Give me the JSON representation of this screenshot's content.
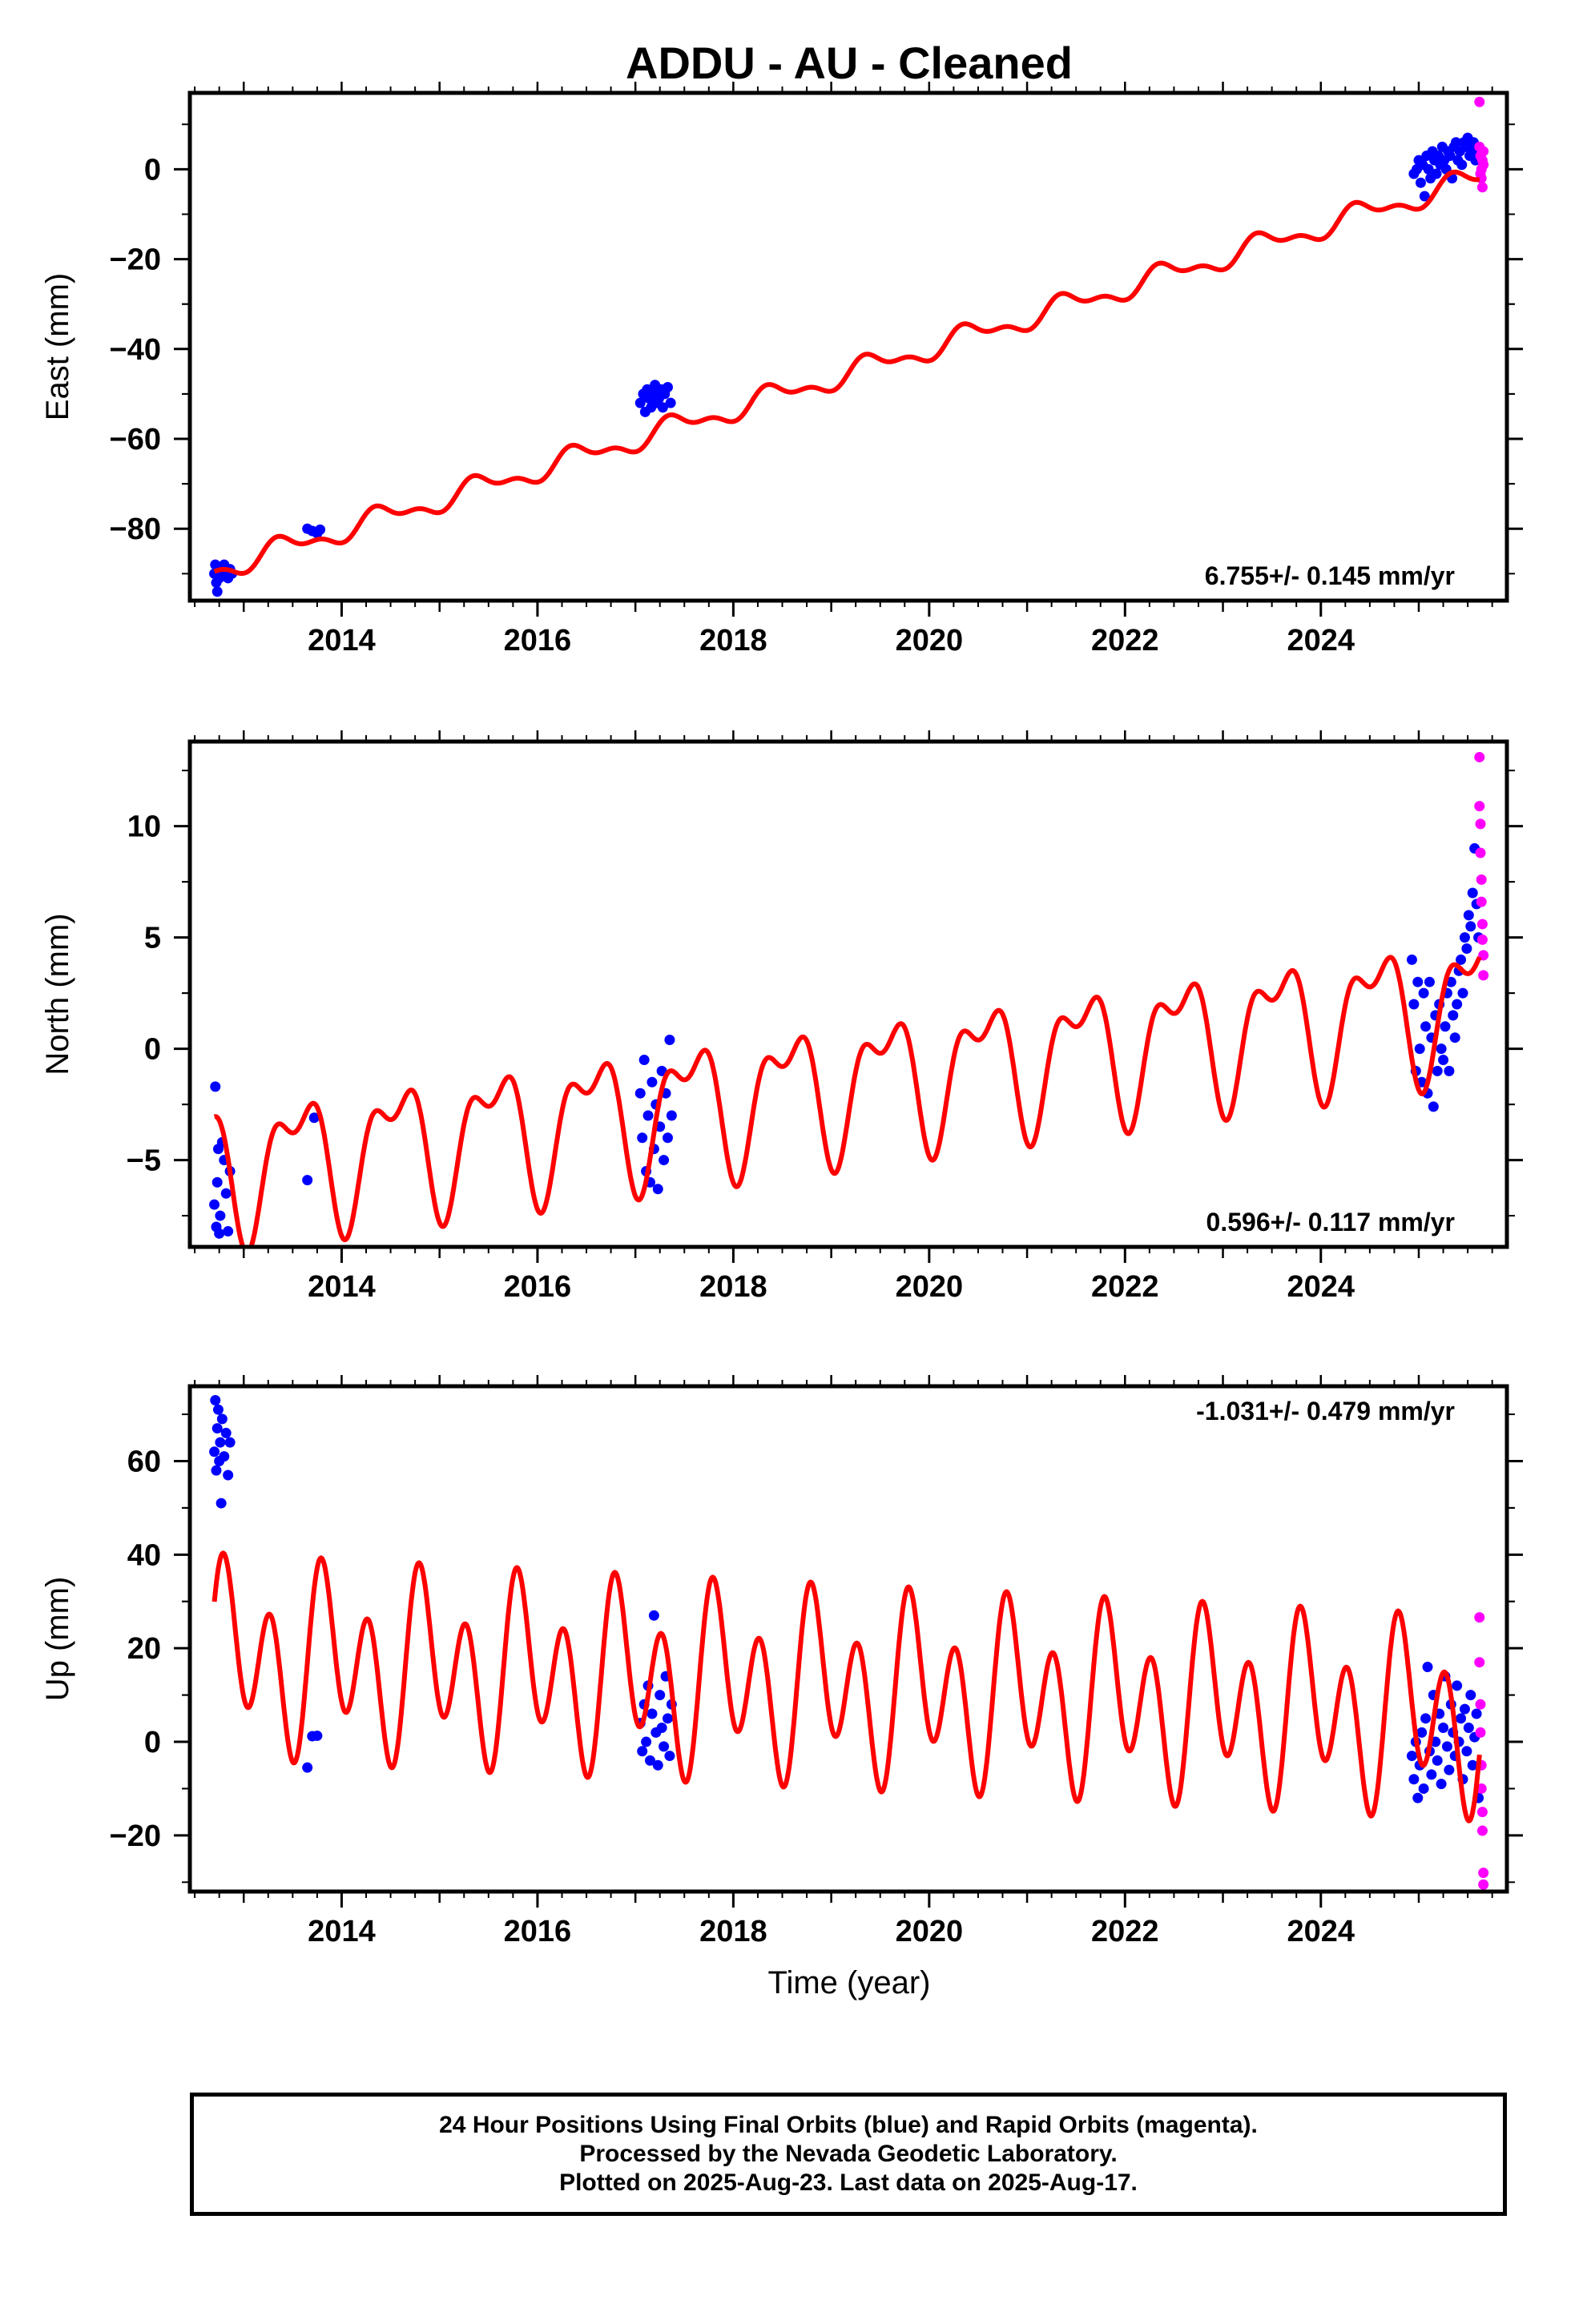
{
  "figure": {
    "title": "ADDU  - AU - Cleaned",
    "xlabel": "Time (year)",
    "caption": [
      "24 Hour Positions Using Final Orbits (blue) and Rapid Orbits (magenta).",
      "Processed by the Nevada Geodetic Laboratory.",
      "Plotted on 2025-Aug-23. Last data on 2025-Aug-17."
    ]
  },
  "colors": {
    "final": "#0000ff",
    "rapid": "#ff00ff",
    "model": "#ff0000",
    "axis": "#000000"
  },
  "chart_data": [
    {
      "type": "scatter",
      "ylabel": "East (mm)",
      "rate_text": "6.755+/- 0.145 mm/yr",
      "xlim": [
        2012.45,
        2025.9
      ],
      "ylim": [
        -96,
        17
      ],
      "xticks": [
        2014,
        2016,
        2018,
        2020,
        2022,
        2024
      ],
      "yticks": [
        -80,
        -60,
        -40,
        -20,
        0
      ],
      "model": {
        "t0": 2012.7,
        "v0": -89.2,
        "rate": 6.755,
        "a1": 2.2,
        "p1": 3.4,
        "a2": 1.2,
        "p2": 0.2
      },
      "series": [
        {
          "kind": "final",
          "points": [
            [
              2012.7,
              -90
            ],
            [
              2012.71,
              -88
            ],
            [
              2012.72,
              -92
            ],
            [
              2012.73,
              -94
            ],
            [
              2012.74,
              -89
            ],
            [
              2012.75,
              -91
            ],
            [
              2012.76,
              -90.5
            ],
            [
              2012.78,
              -89.5
            ],
            [
              2012.8,
              -88
            ],
            [
              2012.82,
              -90
            ],
            [
              2012.84,
              -91
            ],
            [
              2012.86,
              -89
            ],
            [
              2012.88,
              -90
            ],
            [
              2013.65,
              -80
            ],
            [
              2013.7,
              -80.5
            ],
            [
              2013.75,
              -81
            ],
            [
              2013.78,
              -80.2
            ],
            [
              2017.05,
              -52
            ],
            [
              2017.08,
              -50
            ],
            [
              2017.1,
              -54
            ],
            [
              2017.12,
              -49
            ],
            [
              2017.14,
              -51
            ],
            [
              2017.16,
              -53
            ],
            [
              2017.18,
              -50
            ],
            [
              2017.2,
              -48
            ],
            [
              2017.22,
              -52
            ],
            [
              2017.24,
              -51
            ],
            [
              2017.26,
              -49
            ],
            [
              2017.28,
              -53
            ],
            [
              2017.3,
              -50
            ],
            [
              2017.33,
              -48.5
            ],
            [
              2017.36,
              -52
            ],
            [
              2024.95,
              -1
            ],
            [
              2024.98,
              0
            ],
            [
              2025.0,
              2
            ],
            [
              2025.02,
              -3
            ],
            [
              2025.04,
              1
            ],
            [
              2025.06,
              -6
            ],
            [
              2025.08,
              3
            ],
            [
              2025.1,
              0
            ],
            [
              2025.12,
              -2
            ],
            [
              2025.14,
              4
            ],
            [
              2025.16,
              2
            ],
            [
              2025.18,
              -1
            ],
            [
              2025.2,
              3
            ],
            [
              2025.22,
              1
            ],
            [
              2025.24,
              5
            ],
            [
              2025.26,
              2
            ],
            [
              2025.28,
              0
            ],
            [
              2025.3,
              4
            ],
            [
              2025.32,
              3
            ],
            [
              2025.34,
              -2
            ],
            [
              2025.36,
              5
            ],
            [
              2025.38,
              6
            ],
            [
              2025.4,
              2
            ],
            [
              2025.42,
              4
            ],
            [
              2025.44,
              1
            ],
            [
              2025.46,
              6
            ],
            [
              2025.48,
              5
            ],
            [
              2025.5,
              7
            ],
            [
              2025.52,
              3
            ],
            [
              2025.54,
              5
            ],
            [
              2025.56,
              6
            ],
            [
              2025.58,
              2
            ],
            [
              2025.6,
              4
            ]
          ]
        },
        {
          "kind": "rapid",
          "points": [
            [
              2025.62,
              15
            ],
            [
              2025.62,
              5
            ],
            [
              2025.63,
              3
            ],
            [
              2025.63,
              -1
            ],
            [
              2025.64,
              0
            ],
            [
              2025.64,
              -2
            ],
            [
              2025.65,
              -4
            ],
            [
              2025.65,
              2
            ],
            [
              2025.66,
              4
            ],
            [
              2025.66,
              1
            ]
          ]
        }
      ]
    },
    {
      "type": "scatter",
      "ylabel": "North (mm)",
      "rate_text": "0.596+/- 0.117 mm/yr",
      "xlim": [
        2012.45,
        2025.9
      ],
      "ylim": [
        -8.9,
        13.8
      ],
      "xticks": [
        2014,
        2016,
        2018,
        2020,
        2022,
        2024
      ],
      "yticks": [
        -5,
        0,
        5,
        10
      ],
      "model": {
        "t0": 2012.7,
        "v0": -5.4,
        "rate": 0.596,
        "a1": 2.6,
        "p1": 2.5,
        "a2": 1.4,
        "p2": 0.6
      },
      "series": [
        {
          "kind": "final",
          "points": [
            [
              2012.7,
              -7
            ],
            [
              2012.71,
              -1.7
            ],
            [
              2012.72,
              -8
            ],
            [
              2012.73,
              -6
            ],
            [
              2012.74,
              -4.5
            ],
            [
              2012.75,
              -8.3
            ],
            [
              2012.76,
              -7.5
            ],
            [
              2012.78,
              -4.2
            ],
            [
              2012.8,
              -5
            ],
            [
              2012.82,
              -6.5
            ],
            [
              2012.84,
              -8.2
            ],
            [
              2012.86,
              -5.5
            ],
            [
              2013.65,
              -5.9
            ],
            [
              2013.72,
              -3.1
            ],
            [
              2017.05,
              -2
            ],
            [
              2017.07,
              -4
            ],
            [
              2017.09,
              -0.5
            ],
            [
              2017.11,
              -5.5
            ],
            [
              2017.13,
              -3
            ],
            [
              2017.15,
              -6
            ],
            [
              2017.17,
              -1.5
            ],
            [
              2017.19,
              -4.5
            ],
            [
              2017.21,
              -2.5
            ],
            [
              2017.23,
              -6.3
            ],
            [
              2017.25,
              -3.5
            ],
            [
              2017.27,
              -1
            ],
            [
              2017.29,
              -5
            ],
            [
              2017.31,
              -2
            ],
            [
              2017.33,
              -4
            ],
            [
              2017.35,
              0.4
            ],
            [
              2017.37,
              -3
            ],
            [
              2024.93,
              4
            ],
            [
              2024.95,
              2
            ],
            [
              2024.97,
              -1
            ],
            [
              2024.99,
              3
            ],
            [
              2025.01,
              0
            ],
            [
              2025.03,
              -1.5
            ],
            [
              2025.05,
              2.5
            ],
            [
              2025.07,
              1
            ],
            [
              2025.09,
              -2
            ],
            [
              2025.11,
              3
            ],
            [
              2025.13,
              0.5
            ],
            [
              2025.15,
              -2.6
            ],
            [
              2025.17,
              1.5
            ],
            [
              2025.19,
              -1
            ],
            [
              2025.21,
              2
            ],
            [
              2025.23,
              0
            ],
            [
              2025.25,
              -0.5
            ],
            [
              2025.27,
              1
            ],
            [
              2025.29,
              2.5
            ],
            [
              2025.31,
              -1
            ],
            [
              2025.33,
              3
            ],
            [
              2025.35,
              1.5
            ],
            [
              2025.37,
              0.5
            ],
            [
              2025.39,
              2
            ],
            [
              2025.41,
              3.5
            ],
            [
              2025.43,
              4
            ],
            [
              2025.45,
              2.5
            ],
            [
              2025.47,
              5
            ],
            [
              2025.49,
              4.5
            ],
            [
              2025.51,
              6
            ],
            [
              2025.53,
              5.5
            ],
            [
              2025.55,
              7
            ],
            [
              2025.57,
              9
            ],
            [
              2025.59,
              6.5
            ],
            [
              2025.61,
              5
            ]
          ]
        },
        {
          "kind": "rapid",
          "points": [
            [
              2025.62,
              13.1
            ],
            [
              2025.62,
              10.9
            ],
            [
              2025.63,
              10.1
            ],
            [
              2025.63,
              8.8
            ],
            [
              2025.64,
              7.6
            ],
            [
              2025.64,
              6.6
            ],
            [
              2025.65,
              5.6
            ],
            [
              2025.65,
              4.9
            ],
            [
              2025.66,
              4.2
            ],
            [
              2025.66,
              3.3
            ]
          ]
        }
      ]
    },
    {
      "type": "scatter",
      "ylabel": "Up (mm)",
      "rate_text": "-1.031+/- 0.479 mm/yr",
      "xlim": [
        2012.45,
        2025.9
      ],
      "ylim": [
        -32,
        76
      ],
      "xticks": [
        2014,
        2016,
        2018,
        2020,
        2022,
        2024
      ],
      "yticks": [
        -20,
        0,
        20,
        40,
        60
      ],
      "model": {
        "t0": 2012.7,
        "v0": 18.1,
        "rate": -1.031,
        "a1": 8.5,
        "p1": 0.35,
        "a2": 15.8,
        "p2": 0.6
      },
      "series": [
        {
          "kind": "final",
          "points": [
            [
              2012.7,
              62
            ],
            [
              2012.71,
              73
            ],
            [
              2012.72,
              58
            ],
            [
              2012.73,
              67
            ],
            [
              2012.74,
              71
            ],
            [
              2012.75,
              60
            ],
            [
              2012.76,
              64
            ],
            [
              2012.77,
              51
            ],
            [
              2012.78,
              69
            ],
            [
              2012.8,
              61
            ],
            [
              2012.82,
              66
            ],
            [
              2012.84,
              57
            ],
            [
              2012.86,
              64
            ],
            [
              2013.65,
              -5.5
            ],
            [
              2013.7,
              1.2
            ],
            [
              2013.75,
              1.3
            ],
            [
              2017.05,
              4
            ],
            [
              2017.07,
              -2
            ],
            [
              2017.09,
              8
            ],
            [
              2017.11,
              0
            ],
            [
              2017.13,
              12
            ],
            [
              2017.15,
              -4
            ],
            [
              2017.17,
              6
            ],
            [
              2017.19,
              27
            ],
            [
              2017.21,
              2
            ],
            [
              2017.23,
              -5
            ],
            [
              2017.25,
              10
            ],
            [
              2017.27,
              3
            ],
            [
              2017.29,
              -1
            ],
            [
              2017.31,
              14
            ],
            [
              2017.33,
              5
            ],
            [
              2017.35,
              -3
            ],
            [
              2017.37,
              8
            ],
            [
              2024.93,
              -3
            ],
            [
              2024.95,
              -8
            ],
            [
              2024.97,
              0
            ],
            [
              2024.99,
              -12
            ],
            [
              2025.01,
              -5
            ],
            [
              2025.03,
              2
            ],
            [
              2025.05,
              -10
            ],
            [
              2025.07,
              5
            ],
            [
              2025.09,
              16
            ],
            [
              2025.11,
              -2
            ],
            [
              2025.13,
              -7
            ],
            [
              2025.15,
              10
            ],
            [
              2025.17,
              0
            ],
            [
              2025.19,
              -4
            ],
            [
              2025.21,
              6
            ],
            [
              2025.23,
              -9
            ],
            [
              2025.25,
              3
            ],
            [
              2025.27,
              14
            ],
            [
              2025.29,
              -1
            ],
            [
              2025.31,
              -6
            ],
            [
              2025.33,
              8
            ],
            [
              2025.35,
              2
            ],
            [
              2025.37,
              -3
            ],
            [
              2025.39,
              12
            ],
            [
              2025.41,
              0
            ],
            [
              2025.43,
              5
            ],
            [
              2025.45,
              -8
            ],
            [
              2025.47,
              7
            ],
            [
              2025.49,
              -2
            ],
            [
              2025.51,
              3
            ],
            [
              2025.53,
              10
            ],
            [
              2025.55,
              -5
            ],
            [
              2025.57,
              1
            ],
            [
              2025.59,
              6
            ],
            [
              2025.61,
              -12
            ]
          ]
        },
        {
          "kind": "rapid",
          "points": [
            [
              2025.62,
              26.6
            ],
            [
              2025.62,
              17
            ],
            [
              2025.63,
              8
            ],
            [
              2025.63,
              2
            ],
            [
              2025.64,
              -5
            ],
            [
              2025.64,
              -10
            ],
            [
              2025.65,
              -15
            ],
            [
              2025.65,
              -19
            ],
            [
              2025.66,
              -28
            ],
            [
              2025.66,
              -30.5
            ]
          ]
        }
      ]
    }
  ]
}
